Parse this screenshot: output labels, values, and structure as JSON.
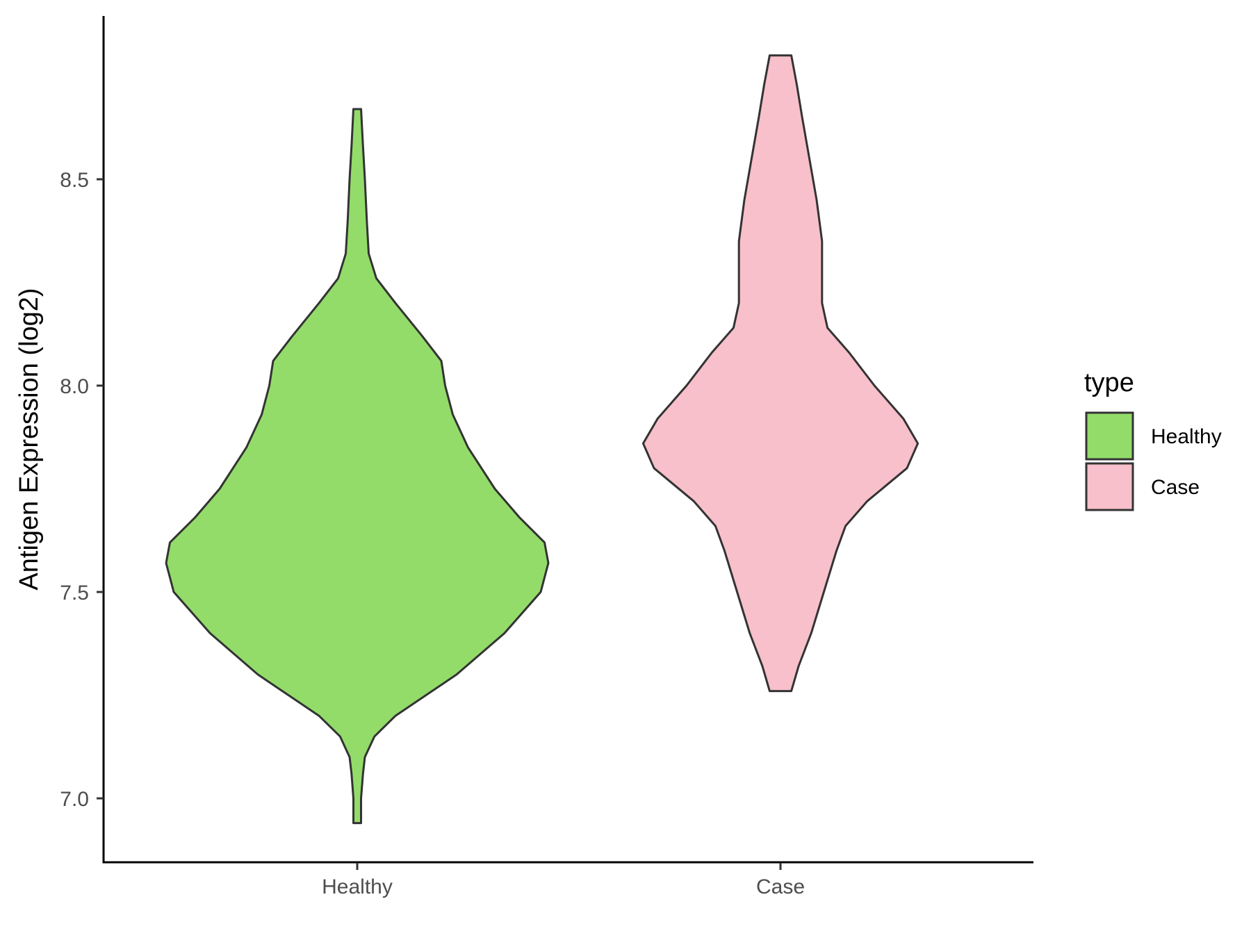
{
  "chart_data": {
    "type": "violin",
    "ylabel": "Antigen Expression (log2)",
    "xlabel": "",
    "categories": [
      "Healthy",
      "Case"
    ],
    "yticks": [
      "7.0",
      "7.5",
      "8.0",
      "8.5"
    ],
    "ylim": [
      6.85,
      8.9
    ],
    "grid": false,
    "legend": {
      "title": "type",
      "position": "right",
      "entries": [
        {
          "label": "Healthy",
          "color": "#93dc6a"
        },
        {
          "label": "Case",
          "color": "#f7c0cb"
        }
      ]
    },
    "series": [
      {
        "name": "Healthy",
        "color": "#93dc6a",
        "min": 6.94,
        "max": 8.67,
        "density": [
          [
            6.94,
            0.02
          ],
          [
            7.0,
            0.02
          ],
          [
            7.06,
            0.03
          ],
          [
            7.1,
            0.04
          ],
          [
            7.15,
            0.09
          ],
          [
            7.2,
            0.2
          ],
          [
            7.25,
            0.36
          ],
          [
            7.3,
            0.52
          ],
          [
            7.4,
            0.77
          ],
          [
            7.5,
            0.96
          ],
          [
            7.57,
            1.0
          ],
          [
            7.62,
            0.98
          ],
          [
            7.68,
            0.85
          ],
          [
            7.75,
            0.72
          ],
          [
            7.85,
            0.58
          ],
          [
            7.93,
            0.5
          ],
          [
            8.0,
            0.46
          ],
          [
            8.06,
            0.44
          ],
          [
            8.12,
            0.34
          ],
          [
            8.2,
            0.2
          ],
          [
            8.26,
            0.1
          ],
          [
            8.32,
            0.06
          ],
          [
            8.4,
            0.05
          ],
          [
            8.5,
            0.04
          ],
          [
            8.58,
            0.03
          ],
          [
            8.67,
            0.02
          ]
        ]
      },
      {
        "name": "Case",
        "color": "#f7c0cb",
        "min": 7.26,
        "max": 8.8,
        "density": [
          [
            7.26,
            0.06
          ],
          [
            7.32,
            0.1
          ],
          [
            7.4,
            0.17
          ],
          [
            7.5,
            0.24
          ],
          [
            7.6,
            0.31
          ],
          [
            7.66,
            0.36
          ],
          [
            7.72,
            0.48
          ],
          [
            7.8,
            0.7
          ],
          [
            7.86,
            0.76
          ],
          [
            7.92,
            0.68
          ],
          [
            8.0,
            0.52
          ],
          [
            8.08,
            0.38
          ],
          [
            8.14,
            0.26
          ],
          [
            8.2,
            0.23
          ],
          [
            8.26,
            0.23
          ],
          [
            8.35,
            0.23
          ],
          [
            8.45,
            0.2
          ],
          [
            8.55,
            0.16
          ],
          [
            8.65,
            0.12
          ],
          [
            8.73,
            0.09
          ],
          [
            8.8,
            0.06
          ]
        ]
      }
    ]
  }
}
